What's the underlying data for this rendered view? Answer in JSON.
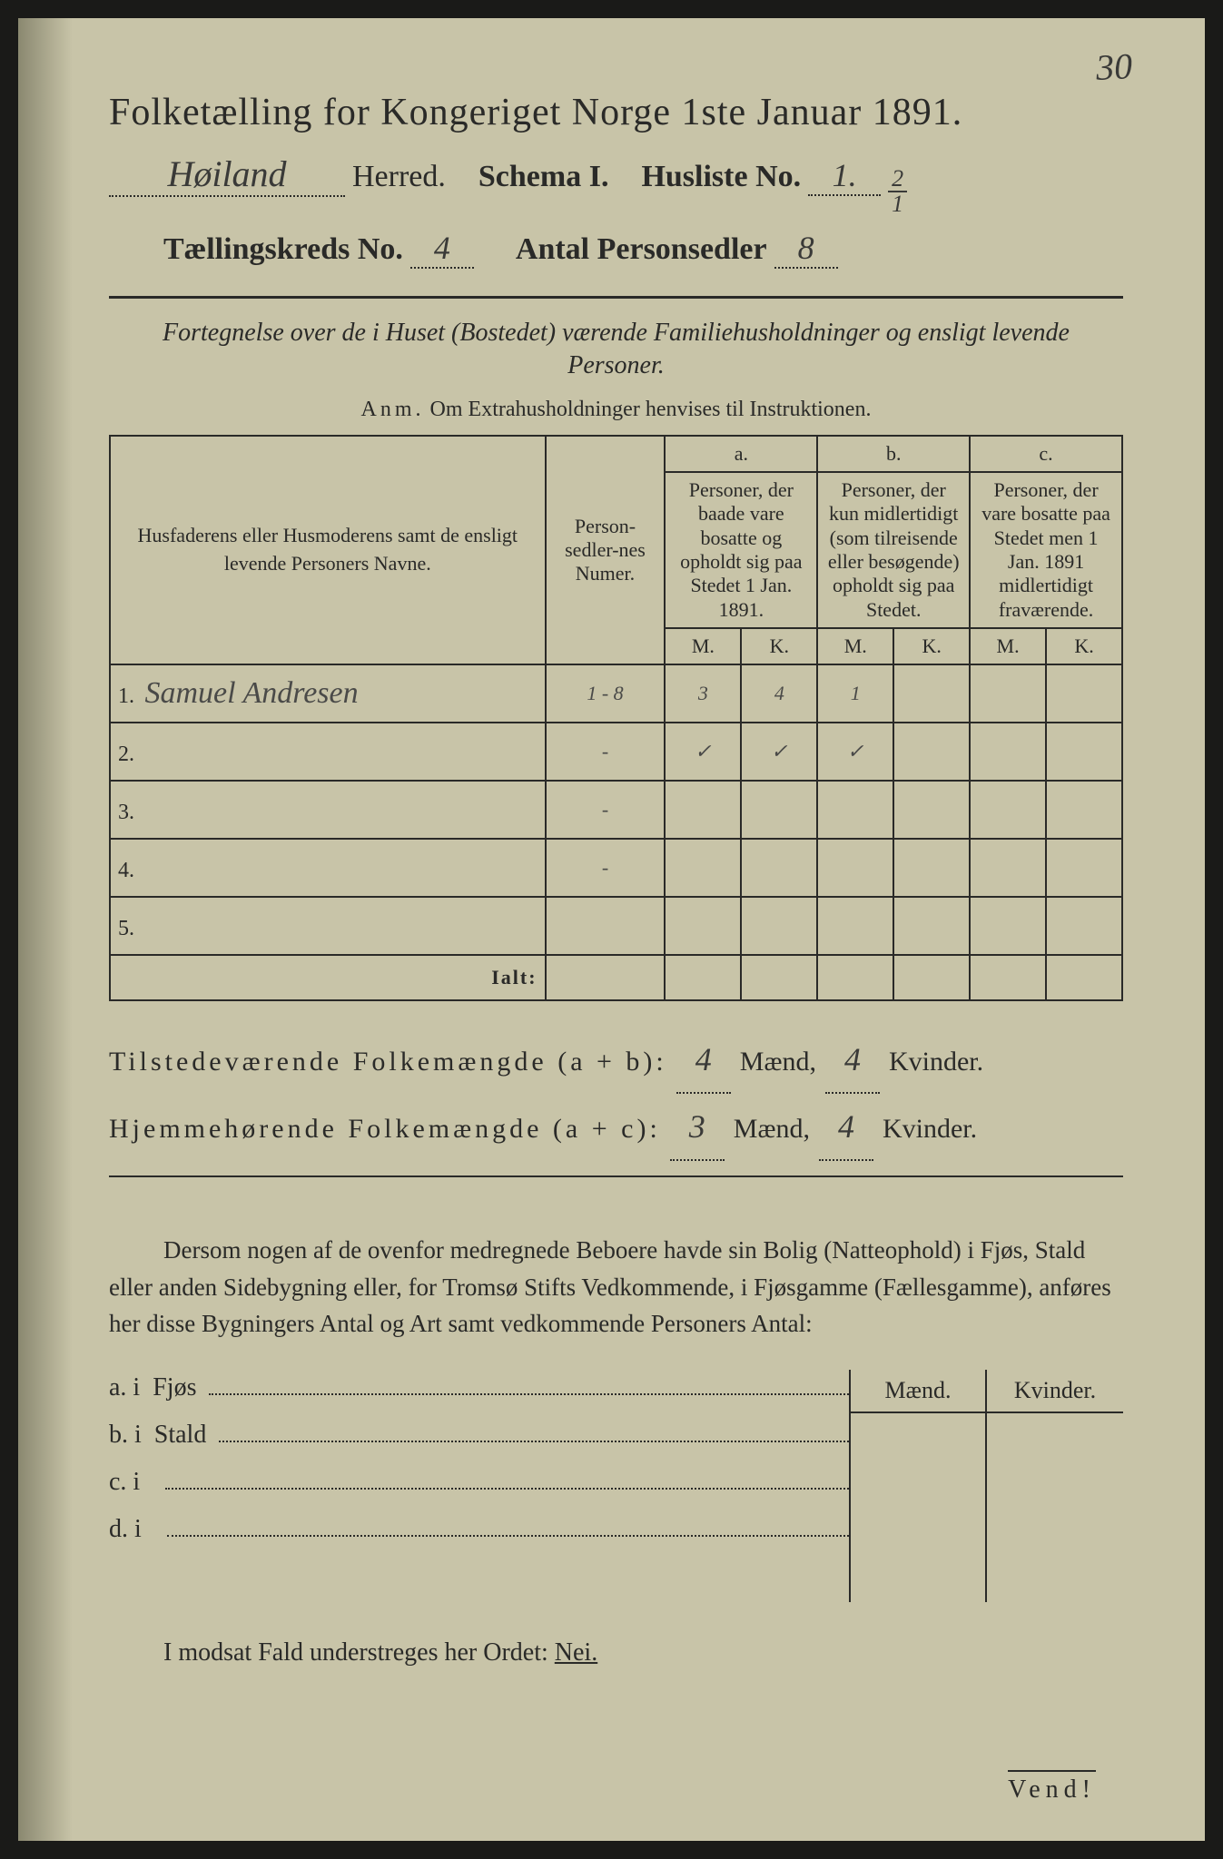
{
  "corner_number": "30",
  "header": {
    "title": "Folketælling for Kongeriget Norge 1ste Januar 1891.",
    "herred_value": "Høiland",
    "herred_label": "Herred.",
    "schema_label": "Schema I.",
    "husliste_label": "Husliste No.",
    "husliste_value": "1.",
    "husliste_frac_top": "2",
    "husliste_frac_bot": "1",
    "kreds_label": "Tællingskreds No.",
    "kreds_value": "4",
    "personsedler_label": "Antal Personsedler",
    "personsedler_value": "8"
  },
  "intro": "Fortegnelse over de i Huset (Bostedet) værende Familiehusholdninger og ensligt levende Personer.",
  "anm_prefix": "Anm.",
  "anm_text": "Om Extrahusholdninger henvises til Instruktionen.",
  "columns": {
    "names": "Husfaderens eller Husmoderens samt de ensligt levende Personers Navne.",
    "numer": "Person-sedler-nes Numer.",
    "a_top": "a.",
    "a_text": "Personer, der baade vare bosatte og opholdt sig paa Stedet 1 Jan. 1891.",
    "b_top": "b.",
    "b_text": "Personer, der kun midlertidigt (som tilreisende eller besøgende) opholdt sig paa Stedet.",
    "c_top": "c.",
    "c_text": "Personer, der vare bosatte paa Stedet men 1 Jan. 1891 midlertidigt fraværende.",
    "m": "M.",
    "k": "K."
  },
  "rows": [
    {
      "n": "1.",
      "name": "Samuel Andresen",
      "numer": "1 - 8",
      "am": "3",
      "ak": "4",
      "bm": "1",
      "bk": "",
      "cm": "",
      "ck": ""
    },
    {
      "n": "2.",
      "name": "",
      "numer": "-",
      "am": "✓",
      "ak": "✓",
      "bm": "✓",
      "bk": "",
      "cm": "",
      "ck": ""
    },
    {
      "n": "3.",
      "name": "",
      "numer": "-",
      "am": "",
      "ak": "",
      "bm": "",
      "bk": "",
      "cm": "",
      "ck": ""
    },
    {
      "n": "4.",
      "name": "",
      "numer": "-",
      "am": "",
      "ak": "",
      "bm": "",
      "bk": "",
      "cm": "",
      "ck": ""
    },
    {
      "n": "5.",
      "name": "",
      "numer": "",
      "am": "",
      "ak": "",
      "bm": "",
      "bk": "",
      "cm": "",
      "ck": ""
    }
  ],
  "ialt": "Ialt:",
  "totals": {
    "line1_label": "Tilstedeværende Folkemængde (a + b):",
    "line1_m": "4",
    "line1_k": "4",
    "line2_label": "Hjemmehørende Folkemængde (a + c):",
    "line2_m": "3",
    "line2_k": "4",
    "maend": "Mænd,",
    "kvinder": "Kvinder."
  },
  "para": "Dersom nogen af de ovenfor medregnede Beboere havde sin Bolig (Natteophold) i Fjøs, Stald eller anden Sidebygning eller, for Tromsø Stifts Vedkommende, i Fjøsgamme (Fællesgamme), anføres her disse Bygningers Antal og Art samt vedkommende Personers Antal:",
  "btable": {
    "head_m": "Mænd.",
    "head_k": "Kvinder.",
    "rows": [
      {
        "label": "a.  i",
        "item": "Fjøs"
      },
      {
        "label": "b.  i",
        "item": "Stald"
      },
      {
        "label": "c.  i",
        "item": ""
      },
      {
        "label": "d.  i",
        "item": ""
      }
    ]
  },
  "nei_line_pre": "I modsat Fald understreges her Ordet: ",
  "nei_word": "Nei.",
  "vend": "Vend!",
  "colors": {
    "paper": "#c8c4a8",
    "ink": "#2a2a28",
    "handwriting": "#3a3a38",
    "blue_pencil": "#2a5a8a",
    "background": "#1a1a18"
  },
  "fonts": {
    "print_family": "Georgia, Times New Roman, serif",
    "handwriting_family": "Brush Script MT, cursive",
    "title_size_pt": 32,
    "body_size_pt": 20
  }
}
